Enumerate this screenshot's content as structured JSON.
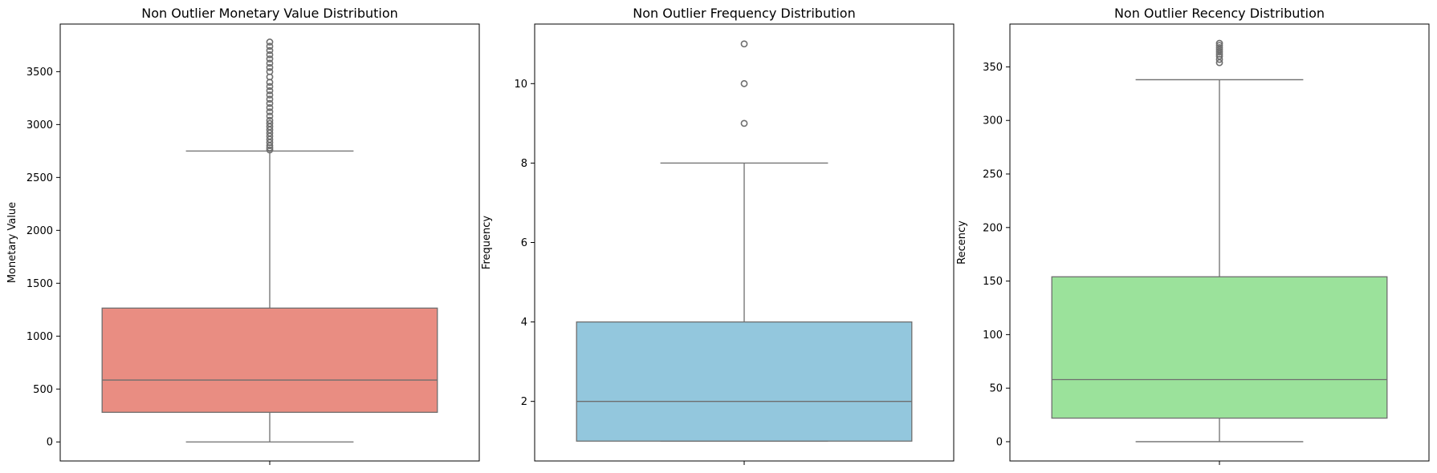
{
  "chart_data": [
    {
      "type": "box",
      "title": "Non Outlier Monetary Value Distribution",
      "xlabel": "",
      "ylabel": "Monetary Value",
      "ylim": [
        -180,
        3950
      ],
      "yticks": [
        0,
        500,
        1000,
        1500,
        2000,
        2500,
        3000,
        3500
      ],
      "color": "#e98d82",
      "box": {
        "whisker_low": 0,
        "q1": 280,
        "median": 585,
        "q3": 1265,
        "whisker_high": 2750
      },
      "outliers": [
        2760,
        2780,
        2800,
        2830,
        2860,
        2890,
        2920,
        2950,
        2980,
        3010,
        3040,
        3080,
        3120,
        3160,
        3200,
        3240,
        3280,
        3320,
        3360,
        3400,
        3450,
        3500,
        3540,
        3580,
        3620,
        3660,
        3700,
        3740,
        3780
      ]
    },
    {
      "type": "box",
      "title": "Non Outlier Frequency Distribution",
      "xlabel": "",
      "ylabel": "Frequency",
      "ylim": [
        0.5,
        11.5
      ],
      "yticks": [
        2,
        4,
        6,
        8,
        10
      ],
      "color": "#93c7dd",
      "box": {
        "whisker_low": 1,
        "q1": 1,
        "median": 2,
        "q3": 4,
        "whisker_high": 8
      },
      "outliers": [
        9,
        10,
        11
      ]
    },
    {
      "type": "box",
      "title": "Non Outlier Recency Distribution",
      "xlabel": "",
      "ylabel": "Recency",
      "ylim": [
        -18,
        390
      ],
      "yticks": [
        0,
        50,
        100,
        150,
        200,
        250,
        300,
        350
      ],
      "color": "#9be29b",
      "box": {
        "whisker_low": 0,
        "q1": 22,
        "median": 58,
        "q3": 154,
        "whisker_high": 338
      },
      "outliers": [
        354,
        357,
        360,
        362,
        364,
        366,
        368,
        370,
        372
      ]
    }
  ],
  "colors": {
    "line": "#6e6e6e",
    "outlier_edge": "#6e6e6e",
    "axes": "#000000"
  }
}
